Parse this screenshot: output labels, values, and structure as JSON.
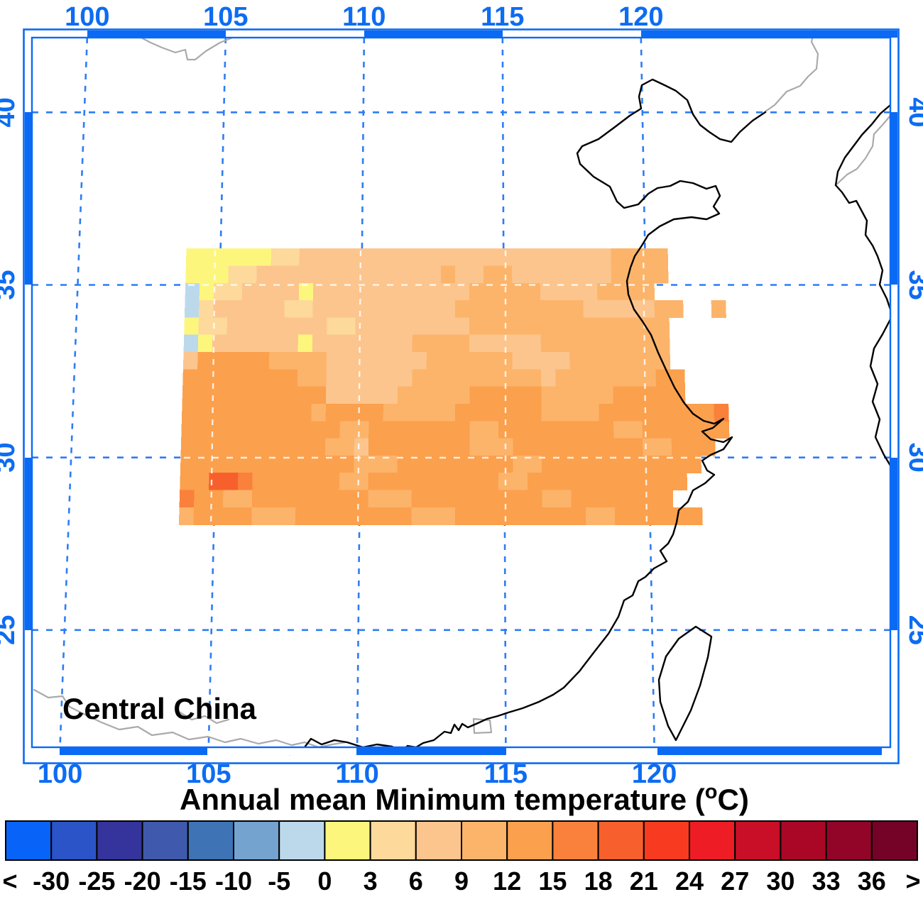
{
  "figure": {
    "region_label": "Central China",
    "title": {
      "prefix": "Annual mean Minimum temperature (",
      "sup": "o",
      "suffix": "C)"
    }
  },
  "axes": {
    "lon_ticks": [
      100,
      105,
      110,
      115,
      120
    ],
    "lon_labels": [
      "100",
      "105",
      "110",
      "115",
      "120"
    ],
    "lat_ticks": [
      40,
      35,
      30,
      25
    ],
    "lat_labels": [
      "40",
      "35",
      "30",
      "25"
    ],
    "axis_color": "#0b6af4",
    "grid_color": "#2e7cf7",
    "label_color": "#0d6cf2"
  },
  "colorbar": {
    "labels": [
      "<",
      "-30",
      "-25",
      "-20",
      "-15",
      "-10",
      "-5",
      "0",
      "3",
      "6",
      "9",
      "12",
      "15",
      "18",
      "21",
      "24",
      "27",
      "30",
      "33",
      "36",
      ">"
    ],
    "colors": [
      "#0864f8",
      "#2a54c8",
      "#34349c",
      "#3f5aac",
      "#3e74b6",
      "#74a3cf",
      "#bcd9ec",
      "#fdf67d",
      "#fdd99b",
      "#fcc58d",
      "#fcb46a",
      "#fba04d",
      "#f9813b",
      "#f7602d",
      "#f83b20",
      "#ee1c24",
      "#c90e27",
      "#aa0726",
      "#920529",
      "#740327"
    ]
  },
  "chart_data": {
    "type": "heatmap",
    "title": "Annual mean Minimum temperature (°C)",
    "region": "Central China",
    "units": "°C",
    "projection_note": "lon range approx 98-128E, lat range approx 21.5-42.3N, gridlines every 5 deg",
    "levels": [
      -30,
      -25,
      -20,
      -15,
      -10,
      -5,
      0,
      3,
      6,
      9,
      12,
      15,
      18,
      21,
      24,
      27,
      30,
      33,
      36
    ],
    "grid_lon_min": 103.8,
    "grid_lat_max": 36.05,
    "cell_size_deg": 0.5,
    "class_legend": {
      "b": "-5 to 0",
      "y": "0 to 3",
      "c": "3 to 6",
      "p": "6 to 9",
      "m": "9 to 12",
      "o": "12 to 15",
      "d": "15 to 18",
      "r": "18 to 21",
      ".": "no data"
    },
    "class_colors": {
      "b": "#bcd9ec",
      "y": "#fdf67d",
      "c": "#fdd99b",
      "p": "#fcc58d",
      "m": "#fcb46a",
      "o": "#fba04d",
      "d": "#f9813b",
      "r": "#f7602d"
    },
    "grid": [
      "yyyyyyccppppppppppppppppppppppmmmm....",
      "yyyccpppppppppppppmppmmpppppppmmmm....",
      "byccppppypppppppppppmmmmmppppmmmm.....",
      "bcpppppccppppppppppmmmmmmmmmpppppmm..m.",
      "yccpppppppccppppppppmmmmmmmmmmmmmm....",
      "byppppppypppppppmmmmpppppmmmmmmmmm....",
      "pooooommmmpppppppmmmmmmppppmmmmmmm....",
      "oooooooommppppppmmmmmmmmmpmmmmmmmoo...",
      "oooooooooopppppmmmmmooooommmmmooooo...",
      "ooooooooomoooommmmmoooooommmmooooooood",
      "ooooooooooommooooooommoooooooommoooooo.",
      "oooooooooommpooooooommmooooooooommooo.",
      "oooooooooooommmoooooooommooooooooooo..",
      "oorrdoooooommooooooooommooooooooooo...",
      "doommoooooooommmooooooooommooooooo....",
      "moooommmoooooooommmooooooooommoooooo..."
    ]
  }
}
